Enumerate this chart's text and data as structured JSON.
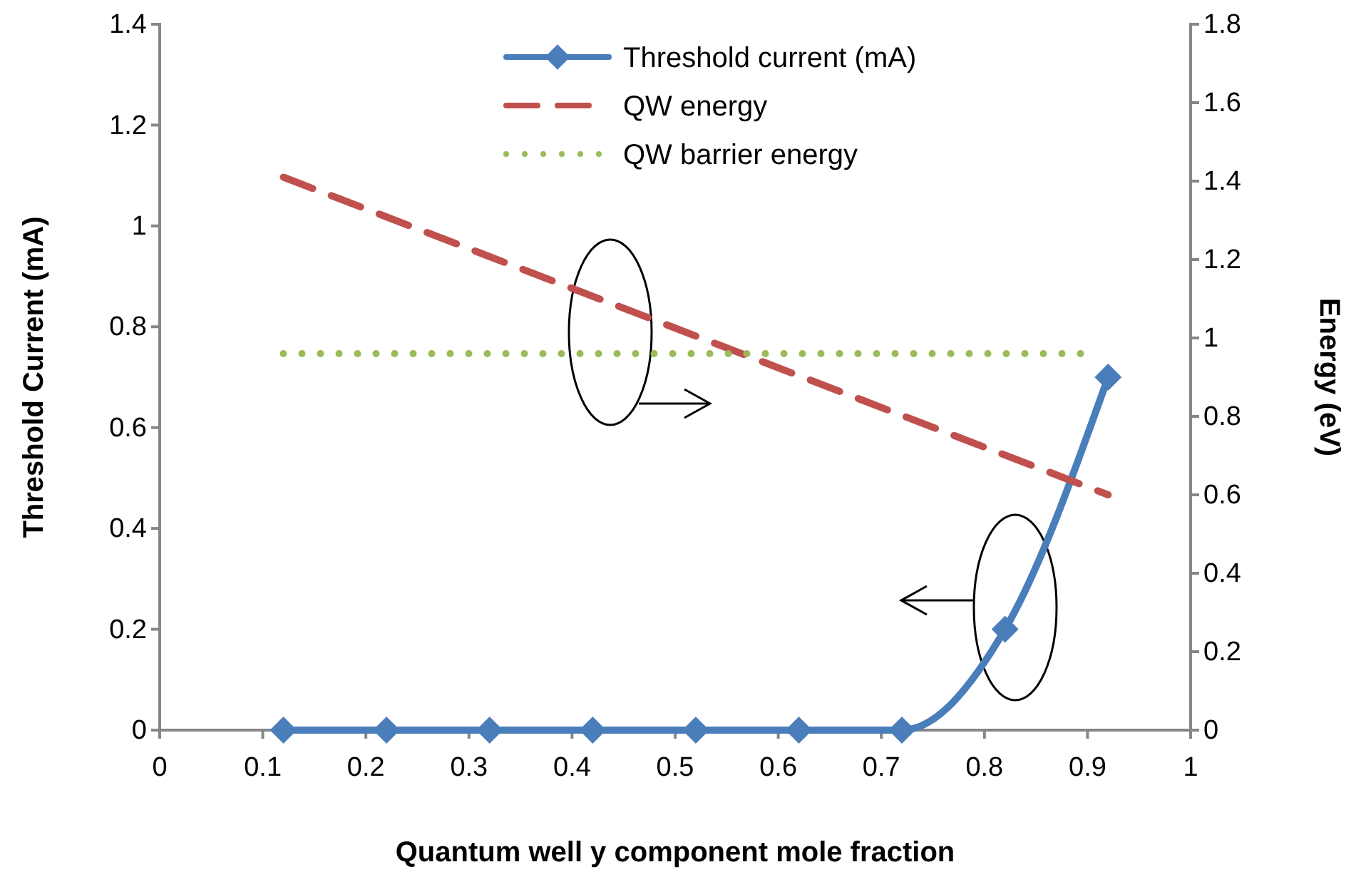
{
  "chart_data": {
    "type": "line",
    "xlabel": "Quantum well y component mole fraction",
    "ylabel": "Threshold Current (mA)",
    "y2label": "Energy (eV)",
    "xlim": [
      0,
      1
    ],
    "xticks": [
      0,
      0.1,
      0.2,
      0.3,
      0.4,
      0.5,
      0.6,
      0.7,
      0.8,
      0.9,
      1
    ],
    "ylim": [
      0,
      1.4
    ],
    "yticks": [
      0,
      0.2,
      0.4,
      0.6,
      0.8,
      1,
      1.2,
      1.4
    ],
    "y2lim": [
      0,
      1.8
    ],
    "y2ticks": [
      0,
      0.2,
      0.4,
      0.6,
      0.8,
      1,
      1.2,
      1.4,
      1.6,
      1.8
    ],
    "legend": "top",
    "grid": false,
    "series": [
      {
        "name": "Threshold current (mA)",
        "color": "#4a7ebb",
        "x": [
          0.12,
          0.22,
          0.32,
          0.42,
          0.52,
          0.62,
          0.72,
          0.82,
          0.92
        ],
        "values": [
          0,
          0,
          0,
          0,
          0,
          0,
          0,
          0.2,
          0.7
        ],
        "marker": "diamond",
        "line_style": "solid"
      },
      {
        "name": "QW energy",
        "color": "#c0504d",
        "axis": "y2",
        "x": [
          0.12,
          0.92
        ],
        "values": [
          1.41,
          0.6
        ],
        "marker": "none",
        "line_style": "dashed"
      },
      {
        "name": "QW barrier energy",
        "color": "#9bbb59",
        "axis": "y2",
        "x": [
          0.12,
          0.9
        ],
        "values": [
          0.96,
          0.96
        ],
        "marker": "none",
        "line_style": "dotted"
      }
    ]
  }
}
